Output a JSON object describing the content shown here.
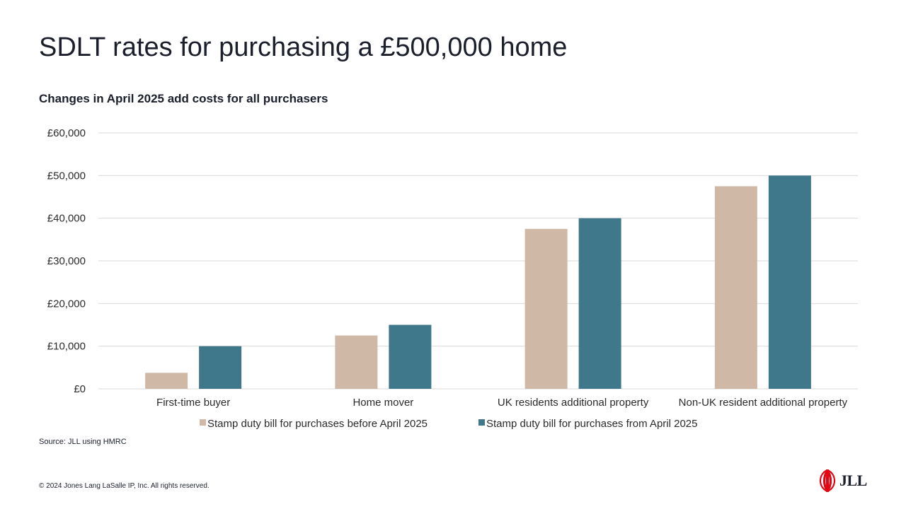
{
  "page": {
    "title": "SDLT rates for purchasing  a £500,000 home",
    "subtitle": "Changes in April 2025 add costs for all purchasers",
    "source": "Source: JLL using HMRC",
    "copyright": "© 2024 Jones Lang LaSalle IP, Inc.  All rights reserved.",
    "logo_text": "JLL",
    "logo_icon": "jll-flame-icon"
  },
  "colors": {
    "before": "#cfb8a6",
    "after": "#3f788b",
    "grid": "#d9d9d9",
    "logo_red": "#e30613"
  },
  "chart_data": {
    "type": "bar",
    "categories": [
      "First-time buyer",
      "Home mover",
      "UK residents additional property",
      "Non-UK resident additional property"
    ],
    "series": [
      {
        "name": "Stamp duty bill for purchases before April 2025",
        "values": [
          3750,
          12500,
          37500,
          47500
        ]
      },
      {
        "name": "Stamp duty bill for purchases from April 2025",
        "values": [
          10000,
          15000,
          40000,
          50000
        ]
      }
    ],
    "ylim": [
      0,
      60000
    ],
    "yticks": [
      {
        "value": 0,
        "label": "£0"
      },
      {
        "value": 10000,
        "label": "£10,000"
      },
      {
        "value": 20000,
        "label": "£20,000"
      },
      {
        "value": 30000,
        "label": "£30,000"
      },
      {
        "value": 40000,
        "label": "£40,000"
      },
      {
        "value": 50000,
        "label": "£50,000"
      },
      {
        "value": 60000,
        "label": "£60,000"
      }
    ],
    "grid": true,
    "legend": "bottom"
  }
}
